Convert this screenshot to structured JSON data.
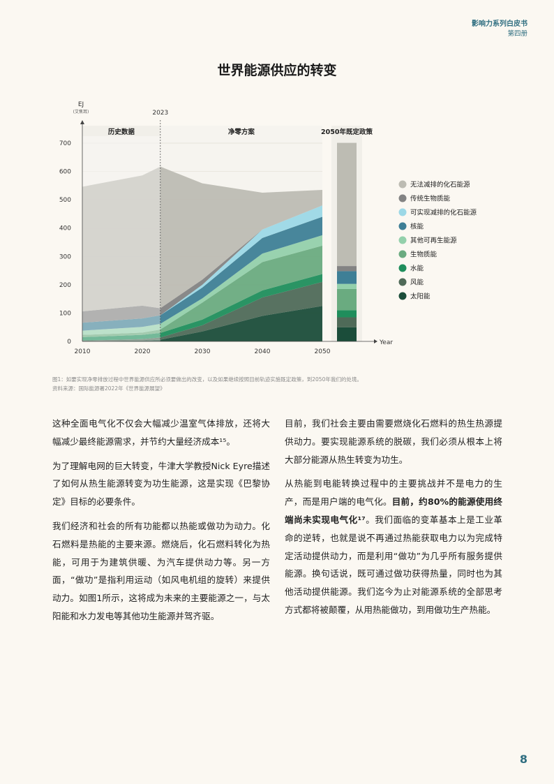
{
  "header": {
    "series": "影响力系列白皮书",
    "volume": "第四册"
  },
  "chart_data": {
    "type": "area",
    "title": "世界能源供应的转变",
    "ylabel": "EJ",
    "ylabel_sub": "(艾焦耳)",
    "xlabel": "Year",
    "marker_year": "2023",
    "ylim": [
      0,
      700
    ],
    "yticks": [
      0,
      100,
      200,
      300,
      400,
      500,
      600,
      700
    ],
    "xticks": [
      2010,
      2020,
      2030,
      2040,
      2050
    ],
    "sections": [
      "历史数据",
      "净零方案",
      "2050年既定政策"
    ],
    "x": [
      2010,
      2020,
      2023,
      2030,
      2040,
      2050
    ],
    "series": [
      {
        "name": "太阳能",
        "color": "#1b4d3a",
        "values": [
          1,
          3,
          6,
          35,
          90,
          125
        ],
        "policy_2050": 50
      },
      {
        "name": "风能",
        "color": "#4f6a58",
        "values": [
          2,
          5,
          8,
          22,
          65,
          85
        ],
        "policy_2050": 35
      },
      {
        "name": "水能",
        "color": "#1f8e5c",
        "values": [
          12,
          15,
          16,
          20,
          25,
          28
        ],
        "policy_2050": 25
      },
      {
        "name": "生物质能",
        "color": "#6aab80",
        "values": [
          8,
          8,
          12,
          60,
          100,
          100
        ],
        "policy_2050": 75
      },
      {
        "name": "其他可再生能源",
        "color": "#93d0ab",
        "values": [
          15,
          20,
          20,
          15,
          30,
          37
        ],
        "policy_2050": 18
      },
      {
        "name": "核能",
        "color": "#3e7f96",
        "values": [
          28,
          30,
          30,
          38,
          55,
          65
        ],
        "policy_2050": 45
      },
      {
        "name": "可实现减排的化石能源",
        "color": "#9cd8e6",
        "values": [
          0,
          0,
          0,
          10,
          30,
          40
        ],
        "policy_2050": 0
      },
      {
        "name": "传统生物质能",
        "color": "#838383",
        "values": [
          40,
          45,
          25,
          18,
          0,
          0
        ],
        "policy_2050": 18
      },
      {
        "name": "无法减排的化石能源",
        "color": "#bdbcb3",
        "values": [
          440,
          460,
          500,
          340,
          130,
          55
        ],
        "policy_2050": 435
      }
    ]
  },
  "caption": {
    "line1": "图1：如要实现净零排放过程中世界能源供应所必须要做出的改变，以及如果继续按照目前轨迹实施既定政策，到2050年我们的处境。",
    "line2": "资料来源：国际能源署2022年《世界能源展望》"
  },
  "body": {
    "left": [
      "这种全面电气化不仅会大幅减少温室气体排放，还将大幅减少最终能源需求，并节约大量经济成本¹⁵。",
      "为了理解电网的巨大转变，牛津大学教授Nick Eyre描述了如何从热生能源转变为功生能源，这是实现《巴黎协定》目标的必要条件。",
      "我们经济和社会的所有功能都以热能或做功为动力。化石燃料是热能的主要来源。燃烧后，化石燃料转化为热能，可用于为建筑供暖、为汽车提供动力等。另一方面，“做功”是指利用运动（如风电机组的旋转）来提供动力。如图1所示，这将成为未来的主要能源之一，与太阳能和水力发电等其他功生能源并驾齐驱。"
    ],
    "right_p1": "目前，我们社会主要由需要燃烧化石燃料的热生热源提供动力。要实现能源系统的脱碳，我们必须从根本上将大部分能源从热生转变为功生。",
    "right_p2_a": "从热能到电能转换过程中的主要挑战并不是电力的生产，而是用户端的电气化。",
    "right_p2_bold": "目前，约80%的能源使用终端尚未实现电气化¹⁷",
    "right_p2_b": "。我们面临的变革基本上是工业革命的逆转，也就是说不再通过热能获取电力以为完成特定活动提供动力，而是利用“做功”为几乎所有服务提供能源。换句话说，既可通过做功获得热量，同时也为其他活动提供能源。我们迄今为止对能源系统的全部思考方式都将被颠覆，从用热能做功，到用做功生产热能。"
  },
  "page_number": "8"
}
